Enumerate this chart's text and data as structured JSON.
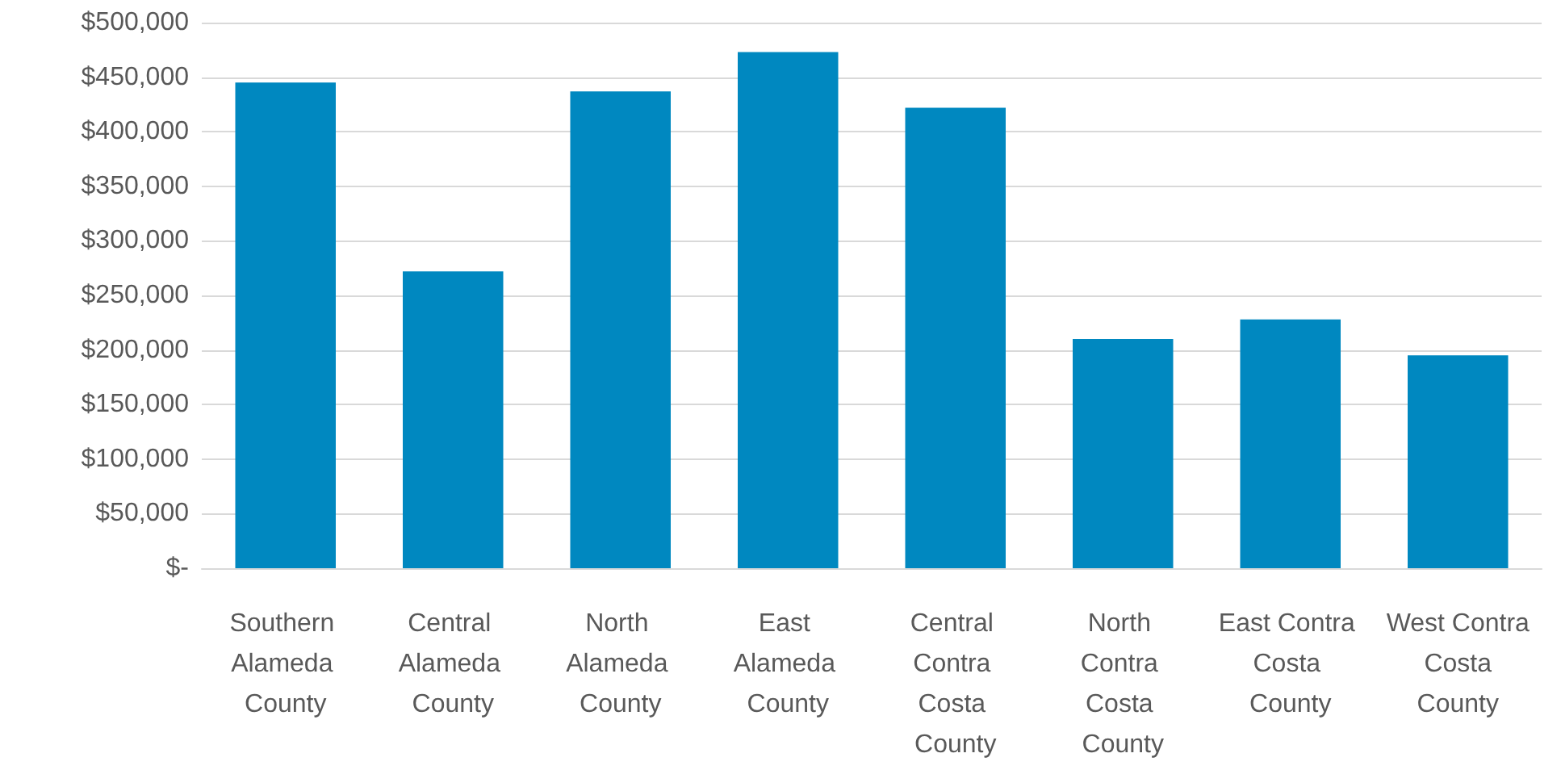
{
  "chart_data": {
    "type": "bar",
    "categories": [
      "Southern Alameda County",
      "Central Alameda County",
      "North Alameda County",
      "East Alameda County",
      "Central Contra Costa County",
      "North Contra Costa County",
      "East Contra Costa County",
      "West Contra Costa County"
    ],
    "values": [
      445000,
      272000,
      437000,
      473000,
      422000,
      210000,
      228000,
      195000
    ],
    "color": "#0088c0",
    "ylim": [
      0,
      500000
    ],
    "yticks": [
      {
        "value": 0,
        "label": "$-"
      },
      {
        "value": 50000,
        "label": "$50,000"
      },
      {
        "value": 100000,
        "label": "$100,000"
      },
      {
        "value": 150000,
        "label": "$150,000"
      },
      {
        "value": 200000,
        "label": "$200,000"
      },
      {
        "value": 250000,
        "label": "$250,000"
      },
      {
        "value": 300000,
        "label": "$300,000"
      },
      {
        "value": 350000,
        "label": "$350,000"
      },
      {
        "value": 400000,
        "label": "$400,000"
      },
      {
        "value": 450000,
        "label": "$450,000"
      },
      {
        "value": 500000,
        "label": "$500,000"
      }
    ],
    "grid": true
  }
}
